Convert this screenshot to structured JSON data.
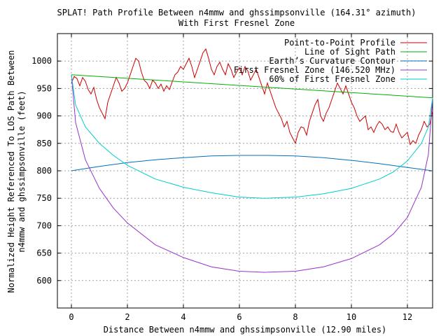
{
  "chart_data": {
    "type": "line",
    "title": "SPLAT! Path Profile Between n4mmw and ghssimpsonville (164.31° azimuth)",
    "subtitle": "With First Fresnel Zone",
    "xlabel": "Distance Between n4mmw and ghssimpsonville (12.90 miles)",
    "ylabel_line1": "Normalized Height Referenced To LOS Path Between",
    "ylabel_line2": "n4mmw and ghssimpsonville (feet)",
    "xlim": [
      -0.5,
      12.9
    ],
    "ylim": [
      550,
      1050
    ],
    "xticks": [
      0,
      2,
      4,
      6,
      8,
      10,
      12
    ],
    "yticks": [
      600,
      650,
      700,
      750,
      800,
      850,
      900,
      950,
      1000
    ],
    "grid": true,
    "legend_position": "top-right",
    "series": [
      {
        "name": "Point-to-Point Profile",
        "color": "#cc0000",
        "x": [
          0,
          0.1,
          0.2,
          0.3,
          0.4,
          0.5,
          0.6,
          0.7,
          0.8,
          0.9,
          1.0,
          1.1,
          1.2,
          1.3,
          1.4,
          1.5,
          1.6,
          1.7,
          1.8,
          1.9,
          2.0,
          2.1,
          2.2,
          2.3,
          2.4,
          2.5,
          2.6,
          2.7,
          2.8,
          2.9,
          3.0,
          3.1,
          3.2,
          3.3,
          3.4,
          3.5,
          3.6,
          3.7,
          3.8,
          3.9,
          4.0,
          4.1,
          4.2,
          4.3,
          4.4,
          4.5,
          4.6,
          4.7,
          4.8,
          4.9,
          5.0,
          5.1,
          5.2,
          5.3,
          5.4,
          5.5,
          5.6,
          5.7,
          5.8,
          5.9,
          6.0,
          6.1,
          6.2,
          6.3,
          6.4,
          6.5,
          6.6,
          6.7,
          6.8,
          6.9,
          7.0,
          7.1,
          7.2,
          7.3,
          7.4,
          7.5,
          7.6,
          7.7,
          7.8,
          7.9,
          8.0,
          8.1,
          8.2,
          8.3,
          8.4,
          8.5,
          8.6,
          8.7,
          8.8,
          8.9,
          9.0,
          9.1,
          9.2,
          9.3,
          9.4,
          9.5,
          9.6,
          9.7,
          9.8,
          9.9,
          10.0,
          10.1,
          10.2,
          10.3,
          10.4,
          10.5,
          10.6,
          10.7,
          10.8,
          10.9,
          11.0,
          11.1,
          11.2,
          11.3,
          11.4,
          11.5,
          11.6,
          11.7,
          11.8,
          11.9,
          12.0,
          12.1,
          12.2,
          12.3,
          12.4,
          12.5,
          12.6,
          12.7,
          12.8,
          12.9
        ],
        "y": [
          960,
          972,
          968,
          955,
          970,
          963,
          948,
          940,
          952,
          930,
          915,
          905,
          895,
          925,
          940,
          955,
          970,
          960,
          945,
          950,
          960,
          975,
          990,
          1005,
          1000,
          980,
          965,
          960,
          950,
          965,
          960,
          950,
          958,
          945,
          955,
          948,
          962,
          975,
          980,
          990,
          985,
          995,
          1005,
          990,
          970,
          985,
          1000,
          1015,
          1022,
          1005,
          985,
          975,
          990,
          998,
          985,
          975,
          995,
          985,
          970,
          980,
          988,
          975,
          990,
          982,
          965,
          975,
          985,
          970,
          955,
          940,
          960,
          945,
          930,
          915,
          905,
          895,
          880,
          890,
          870,
          860,
          850,
          870,
          880,
          878,
          865,
          890,
          905,
          920,
          930,
          900,
          890,
          905,
          915,
          930,
          945,
          960,
          950,
          940,
          955,
          940,
          925,
          915,
          900,
          890,
          895,
          900,
          875,
          880,
          870,
          882,
          890,
          885,
          875,
          880,
          872,
          870,
          885,
          870,
          860,
          865,
          870,
          848,
          855,
          850,
          865,
          875,
          890,
          880,
          885,
          910
        ]
      },
      {
        "name": "Line of Sight Path",
        "color": "#00b000",
        "x": [
          0,
          12.9
        ],
        "y": [
          975,
          933
        ]
      },
      {
        "name": "Earth’s Curvature Contour",
        "color": "#0070c0",
        "x": [
          0,
          1,
          2,
          3,
          4,
          5,
          6,
          6.45,
          7,
          8,
          9,
          10,
          11,
          12,
          12.9
        ],
        "y": [
          800,
          808,
          815,
          820,
          824,
          827,
          828,
          828,
          828,
          827,
          824,
          819,
          813,
          806,
          800
        ]
      },
      {
        "name": "First Fresnel Zone (146.520 MHz)",
        "color": "#9933cc",
        "x": [
          0,
          0.15,
          0.5,
          1,
          1.5,
          2,
          3,
          4,
          5,
          6,
          6.9,
          8,
          9,
          10,
          11,
          11.5,
          12,
          12.5,
          12.75,
          12.9
        ],
        "y": [
          975,
          888,
          820,
          768,
          732,
          705,
          665,
          642,
          625,
          617,
          615,
          617,
          625,
          640,
          665,
          685,
          715,
          770,
          830,
          933
        ]
      },
      {
        "name": "60% of First Fresnel Zone",
        "color": "#00cccc",
        "x": [
          0,
          0.15,
          0.5,
          1,
          1.5,
          2,
          3,
          4,
          5,
          6,
          6.9,
          8,
          9,
          10,
          11,
          11.5,
          12,
          12.5,
          12.75,
          12.9
        ],
        "y": [
          975,
          920,
          880,
          850,
          828,
          810,
          785,
          770,
          760,
          752,
          750,
          752,
          758,
          768,
          785,
          798,
          818,
          850,
          880,
          933
        ]
      }
    ]
  }
}
